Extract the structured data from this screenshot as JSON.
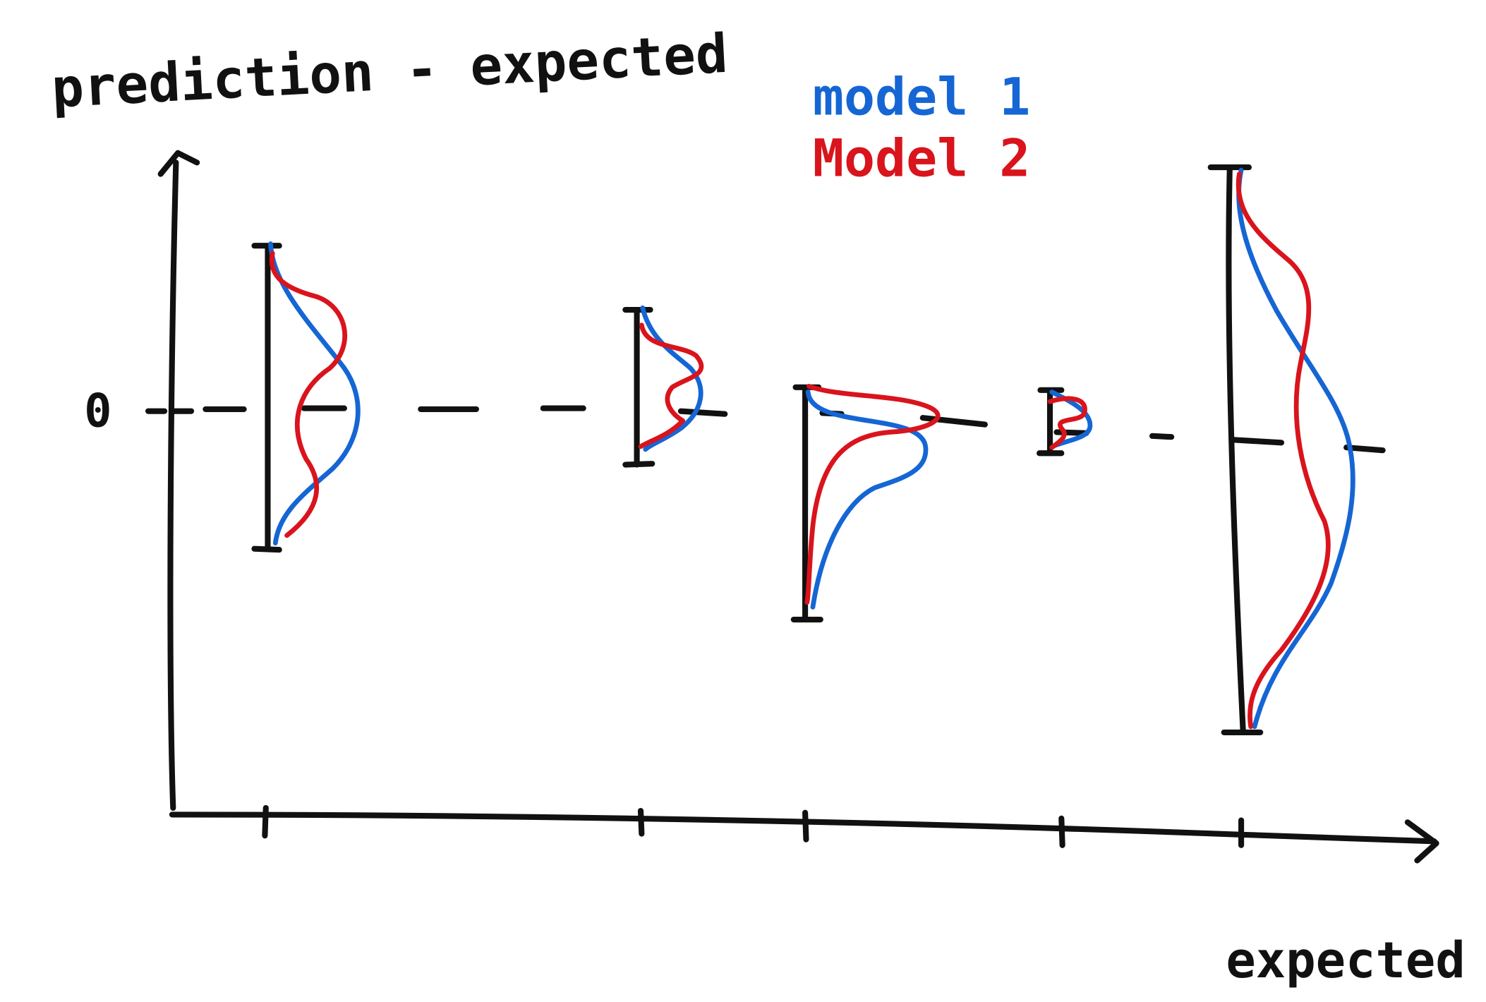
{
  "axes": {
    "y_label": "prediction - expected",
    "x_label": "expected",
    "zero_label": "0"
  },
  "legend": [
    {
      "name": "model 1",
      "color": "#1566d4"
    },
    {
      "name": "Model 2",
      "color": "#d9141c"
    }
  ],
  "colors": {
    "ink": "#111111",
    "model1": "#1566d4",
    "model2": "#d9141c"
  }
}
